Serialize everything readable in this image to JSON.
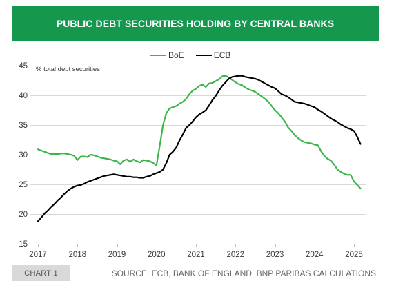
{
  "colors": {
    "header_background": "#16974e",
    "header_text": "#ffffff",
    "chart_badge_background": "#d9d9d9",
    "gridline": "#d9d9d9",
    "axis_tick": "#bfbfbf"
  },
  "footer": {
    "chart_label": "CHART 1",
    "source": "SOURCE: ECB, BANK OF ENGLAND, BNP PARIBAS CALCULATIONS"
  },
  "chart_data": {
    "type": "line",
    "title": "PUBLIC DEBT SECURITIES HOLDING BY CENTRAL BANKS",
    "ylabel": "% total debt securities",
    "ylim": [
      15,
      45
    ],
    "y_ticks": [
      15,
      20,
      25,
      30,
      35,
      40,
      45
    ],
    "x_ticks": [
      "2017",
      "2018",
      "2019",
      "2020",
      "2021",
      "2022",
      "2023",
      "2024",
      "2025"
    ],
    "grid": "horizontal",
    "legend": "top-center",
    "x": [
      "2017-01",
      "2017-02",
      "2017-03",
      "2017-04",
      "2017-05",
      "2017-06",
      "2017-07",
      "2017-08",
      "2017-09",
      "2017-10",
      "2017-11",
      "2017-12",
      "2018-01",
      "2018-02",
      "2018-03",
      "2018-04",
      "2018-05",
      "2018-06",
      "2018-07",
      "2018-08",
      "2018-09",
      "2018-10",
      "2018-11",
      "2018-12",
      "2019-01",
      "2019-02",
      "2019-03",
      "2019-04",
      "2019-05",
      "2019-06",
      "2019-07",
      "2019-08",
      "2019-09",
      "2019-10",
      "2019-11",
      "2019-12",
      "2020-01",
      "2020-02",
      "2020-03",
      "2020-04",
      "2020-05",
      "2020-06",
      "2020-07",
      "2020-08",
      "2020-09",
      "2020-10",
      "2020-11",
      "2020-12",
      "2021-01",
      "2021-02",
      "2021-03",
      "2021-04",
      "2021-05",
      "2021-06",
      "2021-07",
      "2021-08",
      "2021-09",
      "2021-10",
      "2021-11",
      "2021-12",
      "2022-01",
      "2022-02",
      "2022-03",
      "2022-04",
      "2022-05",
      "2022-06",
      "2022-07",
      "2022-08",
      "2022-09",
      "2022-10",
      "2022-11",
      "2022-12",
      "2023-01",
      "2023-02",
      "2023-03",
      "2023-04",
      "2023-05",
      "2023-06",
      "2023-07",
      "2023-08",
      "2023-09",
      "2023-10",
      "2023-11",
      "2023-12",
      "2024-01",
      "2024-02",
      "2024-03",
      "2024-04",
      "2024-05",
      "2024-06",
      "2024-07",
      "2024-08",
      "2024-09",
      "2024-10",
      "2024-11",
      "2024-12",
      "2025-01",
      "2025-02",
      "2025-03"
    ],
    "series": [
      {
        "name": "BoE",
        "color": "#3cb54a",
        "values": [
          30.9,
          30.7,
          30.5,
          30.3,
          30.1,
          30.1,
          30.1,
          30.2,
          30.2,
          30.1,
          30.0,
          29.8,
          29.1,
          29.7,
          29.7,
          29.6,
          30.0,
          29.9,
          29.7,
          29.5,
          29.4,
          29.3,
          29.2,
          29.0,
          28.9,
          28.4,
          29.0,
          29.2,
          28.8,
          29.2,
          28.9,
          28.7,
          29.1,
          29.0,
          28.9,
          28.6,
          28.2,
          31.5,
          35.0,
          37.0,
          37.8,
          38.0,
          38.2,
          38.6,
          38.9,
          39.4,
          40.2,
          40.8,
          41.1,
          41.6,
          41.8,
          41.4,
          42.0,
          42.1,
          42.4,
          42.7,
          43.2,
          43.3,
          43.0,
          42.6,
          42.2,
          41.9,
          41.7,
          41.3,
          41.0,
          40.8,
          40.6,
          40.2,
          39.8,
          39.4,
          38.9,
          38.2,
          37.5,
          37.0,
          36.3,
          35.6,
          34.6,
          34.0,
          33.3,
          32.8,
          32.4,
          32.1,
          32.0,
          31.9,
          31.7,
          31.6,
          30.6,
          29.8,
          29.3,
          29.0,
          28.3,
          27.5,
          27.1,
          26.8,
          26.6,
          26.6,
          25.5,
          24.9,
          24.3
        ]
      },
      {
        "name": "ECB",
        "color": "#000000",
        "values": [
          18.8,
          19.4,
          20.1,
          20.6,
          21.2,
          21.7,
          22.3,
          22.8,
          23.4,
          23.9,
          24.3,
          24.6,
          24.8,
          24.9,
          25.1,
          25.4,
          25.6,
          25.8,
          26.0,
          26.2,
          26.4,
          26.5,
          26.6,
          26.7,
          26.6,
          26.5,
          26.4,
          26.3,
          26.3,
          26.2,
          26.2,
          26.1,
          26.1,
          26.3,
          26.4,
          26.7,
          26.9,
          27.1,
          27.5,
          28.6,
          30.0,
          30.5,
          31.2,
          32.4,
          33.4,
          34.5,
          35.0,
          35.6,
          36.3,
          36.8,
          37.1,
          37.5,
          38.3,
          39.2,
          39.9,
          40.8,
          41.6,
          42.2,
          42.8,
          43.1,
          43.2,
          43.3,
          43.3,
          43.1,
          43.0,
          42.9,
          42.8,
          42.6,
          42.3,
          42.0,
          41.7,
          41.4,
          41.2,
          40.7,
          40.2,
          40.0,
          39.7,
          39.3,
          38.9,
          38.8,
          38.7,
          38.6,
          38.4,
          38.2,
          38.0,
          37.6,
          37.3,
          36.9,
          36.5,
          36.1,
          35.8,
          35.5,
          35.1,
          34.8,
          34.5,
          34.3,
          34.0,
          33.0,
          31.8
        ]
      }
    ]
  }
}
